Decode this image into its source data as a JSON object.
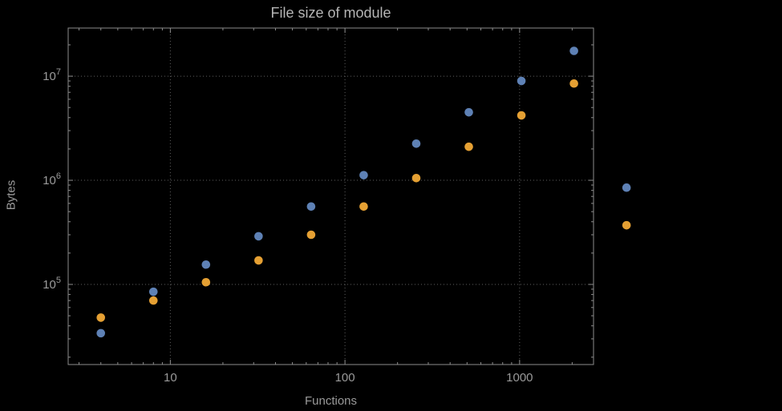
{
  "chart_data": {
    "type": "scatter",
    "title": "File size of module",
    "xlabel": "Functions",
    "ylabel": "Bytes",
    "x_scale": "log",
    "y_scale": "log",
    "xlim": [
      2.6,
      2650
    ],
    "ylim": [
      17000,
      29000000
    ],
    "grid": "dotted",
    "legend": "none",
    "x": [
      4,
      8,
      16,
      32,
      64,
      128,
      256,
      512,
      1024,
      2048,
      4096
    ],
    "series": [
      {
        "name": "blue-series",
        "color": "#5E81B5",
        "values": [
          34000,
          85000,
          155000,
          290000,
          560000,
          1120000,
          2250000,
          4500000,
          9000000,
          17500000,
          850000
        ]
      },
      {
        "name": "orange-series",
        "color": "#E5A033",
        "values": [
          48000,
          70000,
          105000,
          170000,
          300000,
          560000,
          1050000,
          2100000,
          4200000,
          8500000,
          370000
        ]
      }
    ],
    "x_ticks": [
      {
        "value": 10,
        "label": "10"
      },
      {
        "value": 100,
        "label": "100"
      },
      {
        "value": 1000,
        "label": "1000"
      }
    ],
    "y_ticks": [
      {
        "value": 100000,
        "base": "10",
        "exp": "5"
      },
      {
        "value": 1000000,
        "base": "10",
        "exp": "6"
      },
      {
        "value": 10000000,
        "base": "10",
        "exp": "7"
      }
    ]
  },
  "style": {
    "background": "#000000",
    "frame_color": "#8c8c8c",
    "grid_color": "#5f5f5f",
    "text_color": "#9a9a9a",
    "title_color": "#b5b5b5",
    "marker_radius": 5.3
  }
}
